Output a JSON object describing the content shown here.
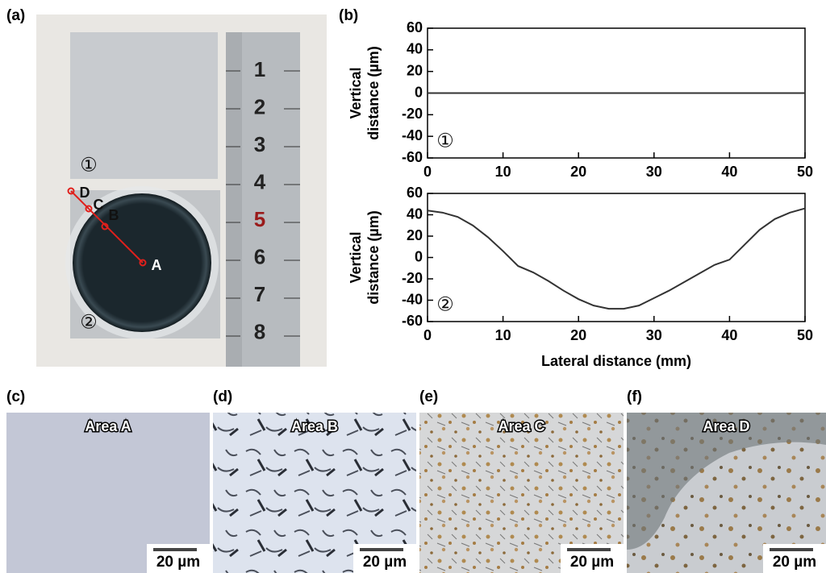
{
  "figure": {
    "panel_a": {
      "label": "(a)",
      "sample_1": "①",
      "sample_2": "②",
      "points": [
        "D",
        "C",
        "B",
        "A"
      ],
      "ruler_numbers": [
        "1",
        "2",
        "3",
        "4",
        "5",
        "6",
        "7",
        "8"
      ]
    },
    "panel_b_label": "(b)",
    "micrographs": [
      {
        "label": "(c)",
        "title": "Area A",
        "scale": "20 µm"
      },
      {
        "label": "(d)",
        "title": "Area B",
        "scale": "20 µm"
      },
      {
        "label": "(e)",
        "title": "Area C",
        "scale": "20 µm"
      },
      {
        "label": "(f)",
        "title": "Area D",
        "scale": "20 µm"
      }
    ]
  },
  "chart_data": [
    {
      "type": "line",
      "ylabel": [
        "Vertical",
        "distance (µm)"
      ],
      "annotation": "①",
      "color": "#333333",
      "x": [
        0,
        2,
        4,
        6,
        8,
        10,
        12,
        14,
        16,
        18,
        20,
        22,
        24,
        26,
        28,
        30,
        32,
        34,
        36,
        38,
        40,
        42,
        44,
        46,
        48,
        50
      ],
      "values": [
        0,
        0,
        0,
        0,
        0,
        0,
        0,
        0,
        0,
        0,
        0,
        0,
        0,
        0,
        0,
        0,
        0,
        0,
        0,
        0,
        0,
        0,
        0,
        0,
        0,
        0
      ],
      "xlim": [
        0,
        50
      ],
      "ylim": [
        -60,
        60
      ],
      "xticks": [
        0,
        10,
        20,
        30,
        40,
        50
      ],
      "yticks": [
        -60,
        -40,
        -20,
        0,
        20,
        40,
        60
      ]
    },
    {
      "type": "line",
      "ylabel": [
        "Vertical",
        "distance (µm)"
      ],
      "annotation": "②",
      "xlabel": "Lateral distance (mm)",
      "color": "#333333",
      "x": [
        0,
        2,
        4,
        6,
        8,
        10,
        12,
        14,
        16,
        18,
        20,
        22,
        24,
        26,
        28,
        30,
        32,
        34,
        36,
        38,
        40,
        42,
        44,
        46,
        48,
        50
      ],
      "values": [
        44,
        42,
        38,
        30,
        19,
        6,
        -8,
        -14,
        -22,
        -31,
        -39,
        -45,
        -48,
        -48,
        -45,
        -38,
        -31,
        -23,
        -15,
        -7,
        -2,
        12,
        26,
        36,
        42,
        46
      ],
      "xlim": [
        0,
        50
      ],
      "ylim": [
        -60,
        60
      ],
      "xticks": [
        0,
        10,
        20,
        30,
        40,
        50
      ],
      "yticks": [
        -60,
        -40,
        -20,
        0,
        20,
        40,
        60
      ]
    }
  ]
}
